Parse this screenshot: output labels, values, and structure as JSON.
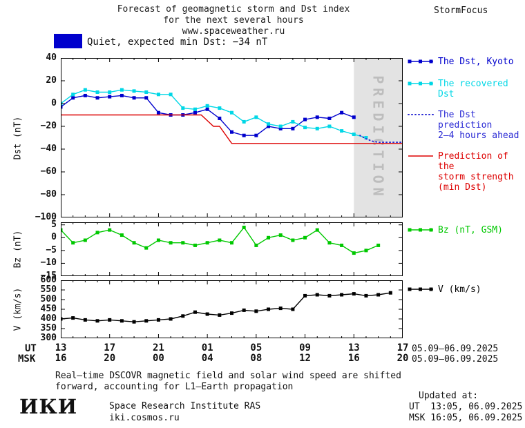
{
  "header": {
    "title_line1": "Forecast of geomagnetic storm and Dst index",
    "title_line2": "for the next several hours",
    "title_line3": "www.spaceweather.ru",
    "brand": "StormFocus"
  },
  "status": {
    "label": "Quiet, expected min Dst: −34 nT",
    "swatch_color": "#0000cd"
  },
  "colors": {
    "kyoto_blue": "#0000cd",
    "recovered_cyan": "#00d7e6",
    "prediction_blue": "#2929d4",
    "storm_red": "#dd0000",
    "bz_green": "#00c800",
    "v_black": "#000000",
    "band": "#e3e3e3",
    "band_text": "#bdbdbd"
  },
  "xaxis": {
    "ut_label": "UT",
    "msk_label": "MSK",
    "tick_hours": [
      0,
      4,
      8,
      12,
      16,
      20,
      24,
      28
    ],
    "ut_ticks": [
      "13",
      "17",
      "21",
      "01",
      "05",
      "09",
      "13",
      "17"
    ],
    "msk_ticks": [
      "16",
      "20",
      "00",
      "04",
      "08",
      "12",
      "16",
      "20"
    ],
    "date_range_ut": "05.09–06.09.2025",
    "date_range_msk": "05.09–06.09.2025"
  },
  "chart_data": [
    {
      "id": "dst",
      "type": "line",
      "ylabel": "Dst (nT)",
      "ylim": [
        -100,
        40
      ],
      "yticks": [
        40,
        20,
        0,
        -20,
        -40,
        -60,
        -80,
        -100
      ],
      "xlim": [
        0,
        28
      ],
      "band": {
        "start": 24,
        "label": "PREDICTION"
      },
      "series": [
        {
          "name": "The Dst, Kyoto",
          "color": "#0000cd",
          "marker": "square",
          "points": [
            [
              0,
              -3
            ],
            [
              1,
              5
            ],
            [
              2,
              7
            ],
            [
              3,
              5
            ],
            [
              4,
              6
            ],
            [
              5,
              7
            ],
            [
              6,
              5
            ],
            [
              7,
              5
            ],
            [
              8,
              -8
            ],
            [
              9,
              -10
            ],
            [
              10,
              -10
            ],
            [
              11,
              -8
            ],
            [
              12,
              -5
            ],
            [
              13,
              -13
            ],
            [
              14,
              -25
            ],
            [
              15,
              -28
            ],
            [
              16,
              -28
            ],
            [
              17,
              -20
            ],
            [
              18,
              -22
            ],
            [
              19,
              -22
            ],
            [
              20,
              -14
            ],
            [
              21,
              -12
            ],
            [
              22,
              -13
            ],
            [
              23,
              -8
            ],
            [
              24,
              -12
            ]
          ]
        },
        {
          "name": "The recovered Dst",
          "color": "#00d7e6",
          "marker": "square",
          "points": [
            [
              0,
              0
            ],
            [
              1,
              8
            ],
            [
              2,
              12
            ],
            [
              3,
              10
            ],
            [
              4,
              10
            ],
            [
              5,
              12
            ],
            [
              6,
              11
            ],
            [
              7,
              10
            ],
            [
              8,
              8
            ],
            [
              9,
              8
            ],
            [
              10,
              -4
            ],
            [
              11,
              -5
            ],
            [
              12,
              -2
            ],
            [
              13,
              -4
            ],
            [
              14,
              -8
            ],
            [
              15,
              -16
            ],
            [
              16,
              -12
            ],
            [
              17,
              -18
            ],
            [
              18,
              -20
            ],
            [
              19,
              -16
            ],
            [
              20,
              -21
            ],
            [
              21,
              -22
            ],
            [
              22,
              -20
            ],
            [
              23,
              -24
            ],
            [
              24,
              -27
            ],
            [
              25,
              -30
            ]
          ]
        },
        {
          "name": "The Dst prediction 2–4 hours ahead",
          "color": "#2929d4",
          "dotted": true,
          "points": [
            [
              24.5,
              -28
            ],
            [
              25,
              -31
            ],
            [
              25.5,
              -33
            ],
            [
              26,
              -34
            ],
            [
              26.5,
              -34
            ],
            [
              27,
              -34
            ],
            [
              27.5,
              -34
            ],
            [
              28,
              -34
            ]
          ]
        },
        {
          "name": "Prediction of the storm strength (min Dst)",
          "color": "#dd0000",
          "points": [
            [
              0,
              -10
            ],
            [
              11.5,
              -10
            ],
            [
              12.5,
              -20
            ],
            [
              13,
              -20
            ],
            [
              14,
              -35
            ],
            [
              28,
              -35
            ]
          ]
        }
      ]
    },
    {
      "id": "bz",
      "type": "line",
      "ylabel": "Bz (nT)",
      "ylim": [
        -15,
        6
      ],
      "yticks": [
        5,
        0,
        -5,
        -10,
        -15
      ],
      "xlim": [
        0,
        28
      ],
      "series": [
        {
          "name": "Bz (nT, GSM)",
          "color": "#00c800",
          "marker": "square",
          "points": [
            [
              0,
              3
            ],
            [
              1,
              -2
            ],
            [
              2,
              -1
            ],
            [
              3,
              2
            ],
            [
              4,
              3
            ],
            [
              5,
              1
            ],
            [
              6,
              -2
            ],
            [
              7,
              -4
            ],
            [
              8,
              -1
            ],
            [
              9,
              -2
            ],
            [
              10,
              -2
            ],
            [
              11,
              -3
            ],
            [
              12,
              -2
            ],
            [
              13,
              -1
            ],
            [
              14,
              -2
            ],
            [
              15,
              4
            ],
            [
              16,
              -3
            ],
            [
              17,
              0
            ],
            [
              18,
              1
            ],
            [
              19,
              -1
            ],
            [
              20,
              0
            ],
            [
              21,
              3
            ],
            [
              22,
              -2
            ],
            [
              23,
              -3
            ],
            [
              24,
              -6
            ],
            [
              25,
              -5
            ],
            [
              26,
              -3
            ]
          ]
        }
      ]
    },
    {
      "id": "v",
      "type": "line",
      "ylabel": "V (km/s)",
      "ylim": [
        300,
        600
      ],
      "yticks": [
        600,
        550,
        500,
        450,
        400,
        350,
        300
      ],
      "xlim": [
        0,
        28
      ],
      "series": [
        {
          "name": "V (km/s)",
          "color": "#000000",
          "marker": "square",
          "points": [
            [
              0,
              400
            ],
            [
              1,
              405
            ],
            [
              2,
              395
            ],
            [
              3,
              390
            ],
            [
              4,
              395
            ],
            [
              5,
              390
            ],
            [
              6,
              385
            ],
            [
              7,
              390
            ],
            [
              8,
              395
            ],
            [
              9,
              400
            ],
            [
              10,
              415
            ],
            [
              11,
              435
            ],
            [
              12,
              425
            ],
            [
              13,
              420
            ],
            [
              14,
              430
            ],
            [
              15,
              445
            ],
            [
              16,
              440
            ],
            [
              17,
              450
            ],
            [
              18,
              455
            ],
            [
              19,
              450
            ],
            [
              20,
              520
            ],
            [
              21,
              525
            ],
            [
              22,
              520
            ],
            [
              23,
              525
            ],
            [
              24,
              530
            ],
            [
              25,
              520
            ],
            [
              26,
              525
            ],
            [
              27,
              535
            ]
          ]
        }
      ]
    }
  ],
  "legend": {
    "dst": [
      {
        "lines": [
          "The Dst, Kyoto"
        ],
        "color": "#0000cd",
        "style": "squares"
      },
      {
        "lines": [
          "The recovered Dst"
        ],
        "color": "#00d7e6",
        "style": "squares"
      },
      {
        "lines": [
          "The Dst prediction",
          "2–4 hours ahead"
        ],
        "color": "#2929d4",
        "style": "dotted"
      },
      {
        "lines": [
          "Prediction of the",
          "storm strength",
          "(min Dst)"
        ],
        "color": "#dd0000",
        "style": "line"
      }
    ],
    "bz": {
      "lines": [
        "Bz (nT, GSM)"
      ],
      "color": "#00c800",
      "style": "squares"
    },
    "v": {
      "lines": [
        "V (km/s)"
      ],
      "color": "#000000",
      "style": "squares"
    }
  },
  "footer": {
    "note_line1": "Real–time DSCOVR magnetic field and solar wind speed are shifted",
    "note_line2": "forward, accounting for L1–Earth propagation",
    "logo": "ИКИ",
    "institute": "Space Research Institute RAS",
    "site": "iki.cosmos.ru",
    "updated_label": "Updated at:",
    "updated_ut": "UT  13:05, 06.09.2025",
    "updated_msk": "MSK 16:05, 06.09.2025"
  }
}
